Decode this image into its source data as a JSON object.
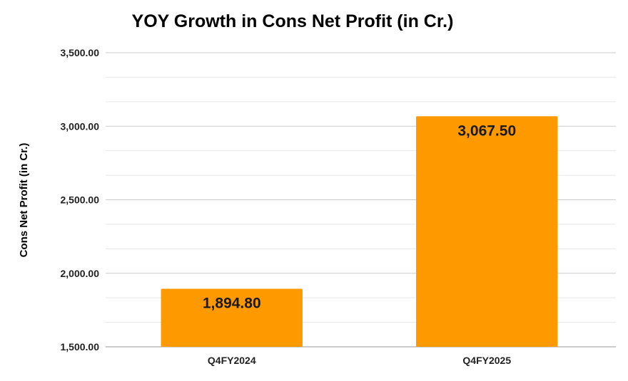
{
  "chart_data": {
    "type": "bar",
    "title": "YOY Growth in Cons Net Profit (in Cr.)",
    "xlabel": "",
    "ylabel": "Cons Net Profit (in Cr.)",
    "categories": [
      "Q4FY2024",
      "Q4FY2025"
    ],
    "values": [
      1894.8,
      3067.5
    ],
    "data_labels": [
      "1,894.80",
      "3,067.50"
    ],
    "ylim": [
      1500,
      3500
    ],
    "yticks": [
      1500,
      2000,
      2500,
      3000,
      3500
    ],
    "ytick_labels": [
      "1,500.00",
      "2,000.00",
      "2,500.00",
      "3,000.00",
      "3,500.00"
    ],
    "minor_grid_step": 166.67,
    "grid": true,
    "legend": "none",
    "bar_color": "#ff9900",
    "grid_color": "#cccccc",
    "minor_grid_color": "#e6e6e6"
  }
}
